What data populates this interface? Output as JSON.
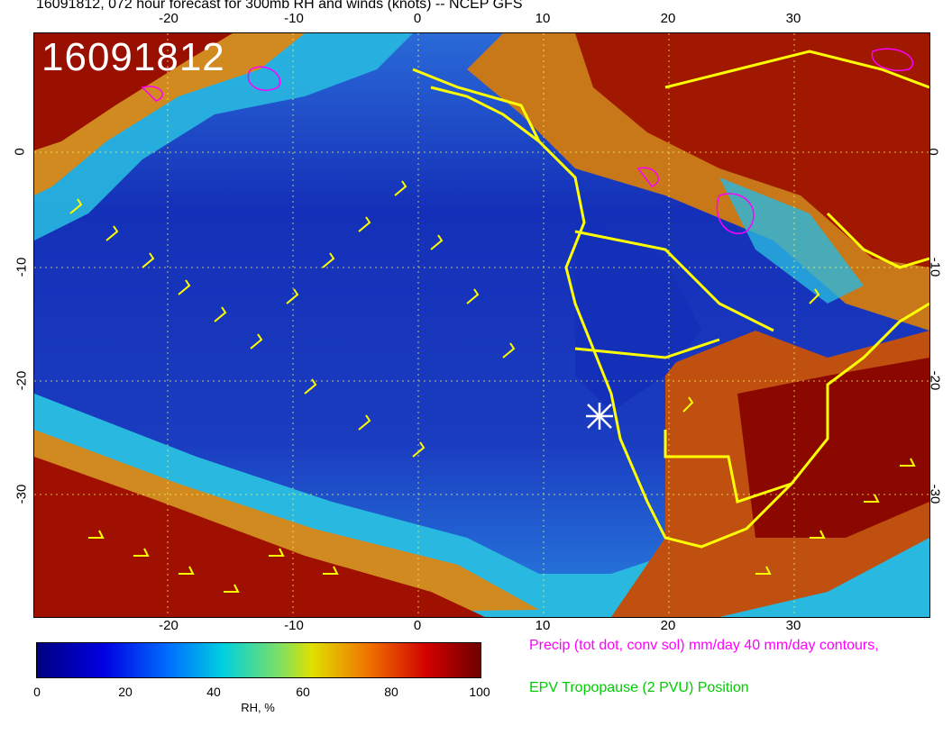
{
  "title": "16091812, 072 hour forecast for 300mb RH and winds (knots) -- NCEP GFS",
  "map": {
    "stamp": "16091812",
    "lon_ticks_top": [
      "-20",
      "-10",
      "0",
      "10",
      "20",
      "30"
    ],
    "lon_ticks_bottom": [
      "-20",
      "-10",
      "0",
      "10",
      "20",
      "30"
    ],
    "lat_ticks_left": [
      "0",
      "-10",
      "-20",
      "-30"
    ],
    "lat_ticks_right": [
      "0",
      "-10",
      "-20",
      "-30"
    ],
    "colors": {
      "low_rh": "#0a1aa8",
      "mid_rh": "#27c6e6",
      "high_rh": "#e0a020",
      "very_high_rh": "#8a0000",
      "coastlines": "#ffff00",
      "precip_contours": "#ff00ff",
      "wind_barbs": "#ffff00",
      "position_marker": "#ffffff"
    }
  },
  "colorbar": {
    "labels": [
      "0",
      "20",
      "40",
      "60",
      "80",
      "100"
    ],
    "unit": "RH, %"
  },
  "legend": {
    "precip": "Precip (tot dot, conv sol) mm/day 40 mm/day contours,",
    "precip_color": "#ff00ff",
    "epv": "EPV Tropopause (2 PVU) Position",
    "epv_color": "#00cc00"
  }
}
